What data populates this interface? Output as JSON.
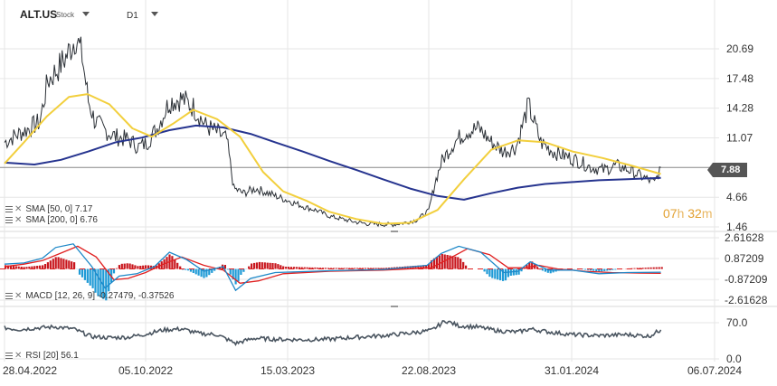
{
  "header": {
    "symbol": "ALT.US",
    "symbol_type": "Stock",
    "timeframe": "D1"
  },
  "price_panel": {
    "ticks": [
      "20.69",
      "17.48",
      "14.28",
      "11.07",
      "4.66",
      "1.46"
    ],
    "last_price_label": "7.88",
    "last_price": 7.88,
    "countdown": {
      "hours": "07",
      "h_unit": "h",
      "minutes": "32",
      "m_unit": "m"
    },
    "indicators": [
      {
        "label": "SMA [50, 0] 7.17"
      },
      {
        "label": "SMA [200, 0] 6.76"
      }
    ]
  },
  "macd_panel": {
    "ticks": [
      "2.61628",
      "0.87209",
      "-0.87209",
      "-2.61628"
    ],
    "label": "MACD [12, 26, 9] -0.27479, -0.37526"
  },
  "rsi_panel": {
    "ticks": [
      "70.0",
      "0.0"
    ],
    "label": "RSI [20] 56.1"
  },
  "x_axis": {
    "ticks": [
      "28.04.2022",
      "05.10.2022",
      "15.03.2023",
      "22.08.2023",
      "31.01.2024",
      "06.07.2024"
    ]
  },
  "colors": {
    "price": "#2a2f35",
    "sma50": "#f2cf3d",
    "sma200": "#26348f",
    "macd_line": "#1e88c8",
    "signal_line": "#e02020",
    "hist_pos": "#c8161d",
    "hist_neg": "#1e9ad6",
    "rsi": "#4a5560",
    "grid": "#e6e6e6"
  },
  "chart_data": {
    "type": "line",
    "x_range": [
      "2022-04-28",
      "2024-07-06"
    ],
    "price_scale": [
      1.46,
      20.69
    ],
    "price": [
      [
        "2022-04-28",
        10.6
      ],
      [
        "2022-05-10",
        11.3
      ],
      [
        "2022-05-24",
        12.0
      ],
      [
        "2022-06-07",
        12.8
      ],
      [
        "2022-06-16",
        17.2
      ],
      [
        "2022-06-28",
        18.6
      ],
      [
        "2022-07-08",
        20.0
      ],
      [
        "2022-07-18",
        22.0
      ],
      [
        "2022-07-25",
        19.9
      ],
      [
        "2022-08-01",
        15.1
      ],
      [
        "2022-08-08",
        13.0
      ],
      [
        "2022-08-18",
        12.0
      ],
      [
        "2022-09-01",
        11.2
      ],
      [
        "2022-09-15",
        10.9
      ],
      [
        "2022-09-27",
        10.1
      ],
      [
        "2022-10-06",
        10.5
      ],
      [
        "2022-10-18",
        12.1
      ],
      [
        "2022-11-01",
        15.0
      ],
      [
        "2022-11-15",
        15.3
      ],
      [
        "2022-11-28",
        14.4
      ],
      [
        "2022-12-12",
        12.4
      ],
      [
        "2022-12-26",
        11.6
      ],
      [
        "2023-01-05",
        10.9
      ],
      [
        "2023-01-13",
        5.6
      ],
      [
        "2023-01-24",
        5.1
      ],
      [
        "2023-02-07",
        5.6
      ],
      [
        "2023-02-21",
        5.1
      ],
      [
        "2023-03-07",
        4.6
      ],
      [
        "2023-03-21",
        4.1
      ],
      [
        "2023-04-04",
        3.6
      ],
      [
        "2023-04-18",
        3.2
      ],
      [
        "2023-05-02",
        2.6
      ],
      [
        "2023-05-16",
        2.3
      ],
      [
        "2023-05-30",
        2.0
      ],
      [
        "2023-06-13",
        1.8
      ],
      [
        "2023-06-27",
        1.75
      ],
      [
        "2023-07-11",
        1.7
      ],
      [
        "2023-07-25",
        1.9
      ],
      [
        "2023-08-08",
        2.2
      ],
      [
        "2023-08-22",
        3.2
      ],
      [
        "2023-08-29",
        6.2
      ],
      [
        "2023-09-06",
        8.6
      ],
      [
        "2023-09-20",
        10.6
      ],
      [
        "2023-10-04",
        11.8
      ],
      [
        "2023-10-18",
        12.1
      ],
      [
        "2023-11-01",
        10.6
      ],
      [
        "2023-11-15",
        9.6
      ],
      [
        "2023-11-29",
        10.1
      ],
      [
        "2023-12-13",
        14.6
      ],
      [
        "2023-12-27",
        10.6
      ],
      [
        "2024-01-10",
        9.6
      ],
      [
        "2024-01-24",
        9.1
      ],
      [
        "2024-02-07",
        8.6
      ],
      [
        "2024-02-21",
        7.9
      ],
      [
        "2024-03-06",
        7.6
      ],
      [
        "2024-03-20",
        8.1
      ],
      [
        "2024-04-03",
        7.6
      ],
      [
        "2024-04-17",
        6.9
      ],
      [
        "2024-05-01",
        6.2
      ],
      [
        "2024-05-08",
        7.88
      ]
    ],
    "series": [
      {
        "name": "SMA [50, 0] 7.17",
        "values": [
          [
            "2022-04-28",
            8.3
          ],
          [
            "2022-05-20",
            10.6
          ],
          [
            "2022-06-15",
            13.4
          ],
          [
            "2022-07-10",
            15.5
          ],
          [
            "2022-07-31",
            15.8
          ],
          [
            "2022-08-25",
            14.7
          ],
          [
            "2022-09-20",
            12.1
          ],
          [
            "2022-10-12",
            11.2
          ],
          [
            "2022-11-05",
            12.6
          ],
          [
            "2022-11-28",
            14.1
          ],
          [
            "2022-12-25",
            13.1
          ],
          [
            "2023-01-20",
            11.2
          ],
          [
            "2023-02-15",
            7.4
          ],
          [
            "2023-03-10",
            5.3
          ],
          [
            "2023-04-05",
            4.3
          ],
          [
            "2023-05-01",
            3.1
          ],
          [
            "2023-06-01",
            2.3
          ],
          [
            "2023-07-01",
            1.8
          ],
          [
            "2023-08-01",
            1.9
          ],
          [
            "2023-09-01",
            3.3
          ],
          [
            "2023-10-01",
            6.6
          ],
          [
            "2023-11-01",
            9.8
          ],
          [
            "2023-12-01",
            10.8
          ],
          [
            "2024-01-01",
            10.6
          ],
          [
            "2024-02-01",
            9.6
          ],
          [
            "2024-03-05",
            8.9
          ],
          [
            "2024-04-05",
            8.1
          ],
          [
            "2024-05-08",
            7.17
          ]
        ]
      },
      {
        "name": "SMA [200, 0] 6.76",
        "values": [
          [
            "2022-04-28",
            8.4
          ],
          [
            "2022-06-01",
            8.2
          ],
          [
            "2022-07-01",
            8.7
          ],
          [
            "2022-08-01",
            9.6
          ],
          [
            "2022-09-01",
            10.6
          ],
          [
            "2022-10-01",
            11.1
          ],
          [
            "2022-11-01",
            11.9
          ],
          [
            "2022-12-01",
            12.4
          ],
          [
            "2023-01-01",
            12.2
          ],
          [
            "2023-02-01",
            11.5
          ],
          [
            "2023-03-01",
            10.6
          ],
          [
            "2023-04-01",
            9.6
          ],
          [
            "2023-05-01",
            8.6
          ],
          [
            "2023-06-01",
            7.6
          ],
          [
            "2023-07-01",
            6.6
          ],
          [
            "2023-08-01",
            5.6
          ],
          [
            "2023-09-01",
            4.8
          ],
          [
            "2023-10-01",
            4.4
          ],
          [
            "2023-11-01",
            5.1
          ],
          [
            "2023-12-01",
            5.7
          ],
          [
            "2024-01-01",
            6.1
          ],
          [
            "2024-02-01",
            6.3
          ],
          [
            "2024-03-01",
            6.5
          ],
          [
            "2024-04-01",
            6.6
          ],
          [
            "2024-05-08",
            6.76
          ]
        ]
      }
    ],
    "macd": {
      "y_range": [
        -2.61628,
        2.61628
      ],
      "macd_line": [
        [
          "2022-04-28",
          0.4
        ],
        [
          "2022-05-20",
          0.5
        ],
        [
          "2022-06-10",
          0.9
        ],
        [
          "2022-06-25",
          1.8
        ],
        [
          "2022-07-15",
          2.1
        ],
        [
          "2022-08-05",
          0.2
        ],
        [
          "2022-08-20",
          -1.6
        ],
        [
          "2022-09-05",
          -0.6
        ],
        [
          "2022-09-25",
          -0.4
        ],
        [
          "2022-10-15",
          0.2
        ],
        [
          "2022-11-01",
          1.4
        ],
        [
          "2022-11-20",
          0.8
        ],
        [
          "2022-12-10",
          -0.2
        ],
        [
          "2023-01-01",
          0.2
        ],
        [
          "2023-01-15",
          -1.8
        ],
        [
          "2023-02-01",
          -0.8
        ],
        [
          "2023-03-01",
          -0.3
        ],
        [
          "2023-05-01",
          -0.15
        ],
        [
          "2023-07-01",
          -0.05
        ],
        [
          "2023-08-20",
          0.3
        ],
        [
          "2023-09-05",
          1.3
        ],
        [
          "2023-09-25",
          1.9
        ],
        [
          "2023-10-20",
          1.4
        ],
        [
          "2023-11-15",
          -0.3
        ],
        [
          "2023-12-01",
          -0.2
        ],
        [
          "2023-12-15",
          0.6
        ],
        [
          "2024-01-05",
          -0.1
        ],
        [
          "2024-02-01",
          -0.1
        ],
        [
          "2024-03-01",
          -0.4
        ],
        [
          "2024-04-01",
          -0.3
        ],
        [
          "2024-05-08",
          -0.27479
        ]
      ],
      "signal_line": [
        [
          "2022-04-28",
          0.2
        ],
        [
          "2022-05-20",
          0.4
        ],
        [
          "2022-06-10",
          0.7
        ],
        [
          "2022-06-30",
          1.3
        ],
        [
          "2022-07-20",
          1.9
        ],
        [
          "2022-08-10",
          1.0
        ],
        [
          "2022-08-30",
          -0.9
        ],
        [
          "2022-09-15",
          -0.8
        ],
        [
          "2022-10-05",
          -0.3
        ],
        [
          "2022-10-25",
          0.4
        ],
        [
          "2022-11-15",
          1.0
        ],
        [
          "2022-12-10",
          0.3
        ],
        [
          "2023-01-01",
          -0.1
        ],
        [
          "2023-01-20",
          -1.2
        ],
        [
          "2023-02-10",
          -1.0
        ],
        [
          "2023-03-10",
          -0.4
        ],
        [
          "2023-05-01",
          -0.2
        ],
        [
          "2023-07-01",
          -0.1
        ],
        [
          "2023-08-25",
          0.1
        ],
        [
          "2023-09-15",
          0.9
        ],
        [
          "2023-10-05",
          1.7
        ],
        [
          "2023-10-30",
          1.2
        ],
        [
          "2023-11-20",
          0.1
        ],
        [
          "2023-12-10",
          0.1
        ],
        [
          "2023-12-25",
          0.3
        ],
        [
          "2024-01-15",
          0.0
        ],
        [
          "2024-02-15",
          -0.2
        ],
        [
          "2024-03-15",
          -0.3
        ],
        [
          "2024-04-15",
          -0.35
        ],
        [
          "2024-05-08",
          -0.37526
        ]
      ]
    },
    "rsi": {
      "y_range": [
        0,
        100
      ],
      "values": [
        [
          "2022-04-28",
          60
        ],
        [
          "2022-05-15",
          57
        ],
        [
          "2022-06-05",
          60
        ],
        [
          "2022-06-25",
          62
        ],
        [
          "2022-07-15",
          58
        ],
        [
          "2022-08-05",
          43
        ],
        [
          "2022-08-25",
          41
        ],
        [
          "2022-09-15",
          42
        ],
        [
          "2022-10-05",
          48
        ],
        [
          "2022-10-25",
          56
        ],
        [
          "2022-11-15",
          58
        ],
        [
          "2022-12-05",
          49
        ],
        [
          "2022-12-25",
          47
        ],
        [
          "2023-01-15",
          30
        ],
        [
          "2023-02-05",
          40
        ],
        [
          "2023-03-01",
          38
        ],
        [
          "2023-04-01",
          37
        ],
        [
          "2023-05-01",
          38
        ],
        [
          "2023-06-01",
          42
        ],
        [
          "2023-07-01",
          45
        ],
        [
          "2023-08-01",
          50
        ],
        [
          "2023-08-25",
          55
        ],
        [
          "2023-09-10",
          74
        ],
        [
          "2023-09-25",
          64
        ],
        [
          "2023-10-15",
          62
        ],
        [
          "2023-11-10",
          54
        ],
        [
          "2023-12-01",
          52
        ],
        [
          "2023-12-15",
          58
        ],
        [
          "2024-01-05",
          52
        ],
        [
          "2024-02-01",
          47
        ],
        [
          "2024-03-01",
          45
        ],
        [
          "2024-04-01",
          47
        ],
        [
          "2024-04-25",
          44
        ],
        [
          "2024-05-08",
          56.1
        ]
      ]
    }
  }
}
